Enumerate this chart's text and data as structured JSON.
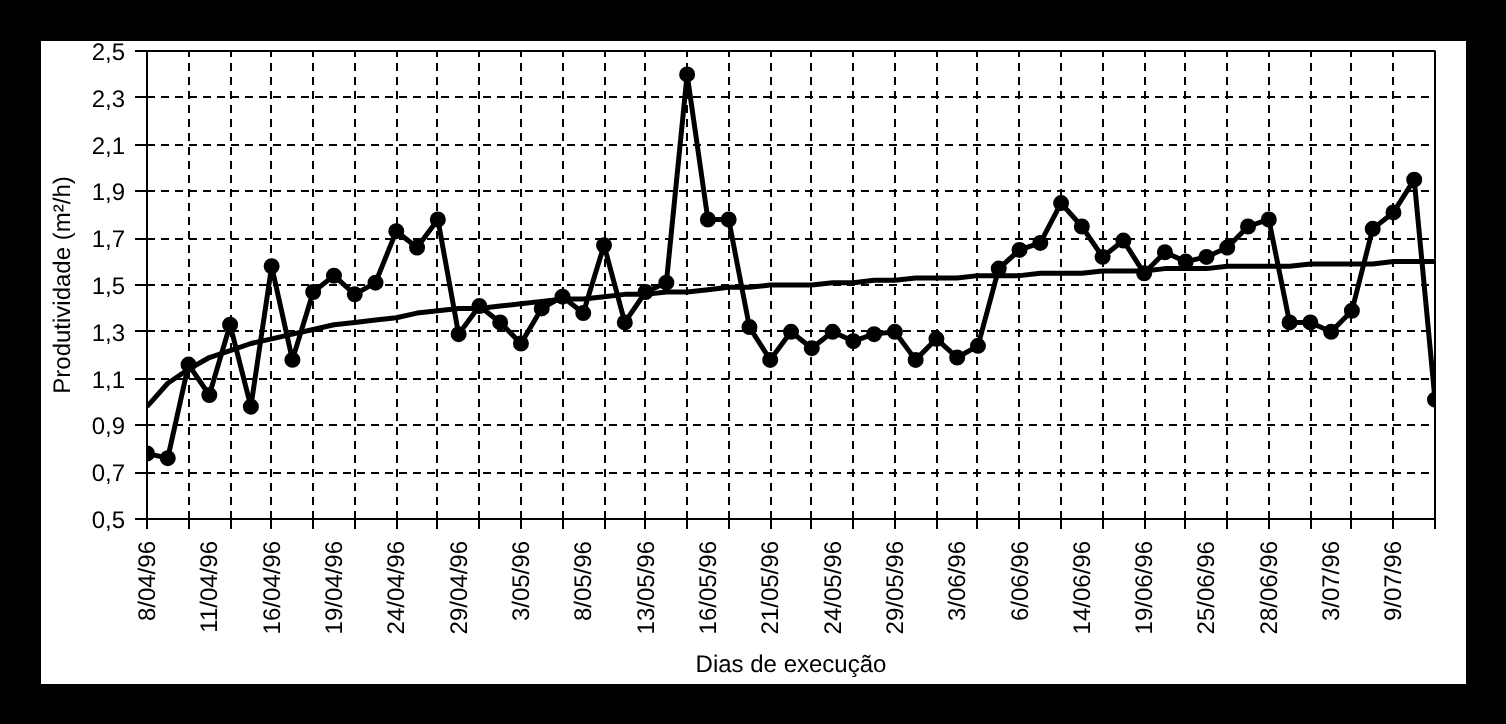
{
  "chart_data": {
    "type": "line",
    "xlabel": "Dias de execução",
    "ylabel": "Produtividade (m²/h)",
    "categories": [
      "8/04/96",
      null,
      null,
      "11/04/96",
      null,
      null,
      "16/04/96",
      null,
      null,
      "19/04/96",
      null,
      null,
      "24/04/96",
      null,
      null,
      "29/04/96",
      null,
      null,
      "3/05/96",
      null,
      null,
      "8/05/96",
      null,
      null,
      "13/05/96",
      null,
      null,
      "16/05/96",
      null,
      null,
      "21/05/96",
      null,
      null,
      "24/05/96",
      null,
      null,
      "29/05/96",
      null,
      null,
      "3/06/96",
      null,
      null,
      "6/06/96",
      null,
      null,
      "14/06/96",
      null,
      null,
      "19/06/96",
      null,
      null,
      "25/06/96",
      null,
      null,
      "28/06/96",
      null,
      null,
      "3/07/96",
      null,
      null,
      "9/07/96",
      null,
      null
    ],
    "series": [
      {
        "color": "#000000",
        "marker": "circle",
        "values": [
          0.78,
          0.76,
          1.16,
          1.03,
          1.33,
          0.98,
          1.58,
          1.18,
          1.47,
          1.54,
          1.46,
          1.51,
          1.73,
          1.66,
          1.78,
          1.29,
          1.41,
          1.34,
          1.25,
          1.4,
          1.45,
          1.38,
          1.67,
          1.34,
          1.47,
          1.51,
          2.4,
          1.78,
          1.78,
          1.32,
          1.18,
          1.3,
          1.23,
          1.3,
          1.26,
          1.29,
          1.3,
          1.18,
          1.27,
          1.19,
          1.24,
          1.57,
          1.65,
          1.68,
          1.85,
          1.75,
          1.62,
          1.69,
          1.55,
          1.64,
          1.6,
          1.62,
          1.66,
          1.75,
          1.78,
          1.34,
          1.34,
          1.3,
          1.39,
          1.74,
          1.81,
          1.95,
          1.01
        ]
      },
      {
        "color": "#000000",
        "marker": "none",
        "values": [
          0.98,
          1.08,
          1.14,
          1.19,
          1.22,
          1.25,
          1.27,
          1.29,
          1.31,
          1.33,
          1.34,
          1.35,
          1.36,
          1.38,
          1.39,
          1.4,
          1.4,
          1.41,
          1.42,
          1.43,
          1.44,
          1.44,
          1.45,
          1.46,
          1.46,
          1.47,
          1.47,
          1.48,
          1.49,
          1.49,
          1.5,
          1.5,
          1.5,
          1.51,
          1.51,
          1.52,
          1.52,
          1.53,
          1.53,
          1.53,
          1.54,
          1.54,
          1.54,
          1.55,
          1.55,
          1.55,
          1.56,
          1.56,
          1.56,
          1.57,
          1.57,
          1.57,
          1.58,
          1.58,
          1.58,
          1.58,
          1.59,
          1.59,
          1.59,
          1.59,
          1.6,
          1.6,
          1.6
        ]
      }
    ],
    "ylim": [
      0.5,
      2.5
    ],
    "yticks": [
      {
        "value": 0.5,
        "label": "0,5"
      },
      {
        "value": 0.7,
        "label": "0,7"
      },
      {
        "value": 0.9,
        "label": "0,9"
      },
      {
        "value": 1.1,
        "label": "1,1"
      },
      {
        "value": 1.3,
        "label": "1,3"
      },
      {
        "value": 1.5,
        "label": "1,5"
      },
      {
        "value": 1.7,
        "label": "1,7"
      },
      {
        "value": 1.9,
        "label": "1,9"
      },
      {
        "value": 2.1,
        "label": "2,1"
      },
      {
        "value": 2.3,
        "label": "2,3"
      },
      {
        "value": 2.5,
        "label": "2,5"
      }
    ],
    "grid": true,
    "line_style": "solid"
  }
}
